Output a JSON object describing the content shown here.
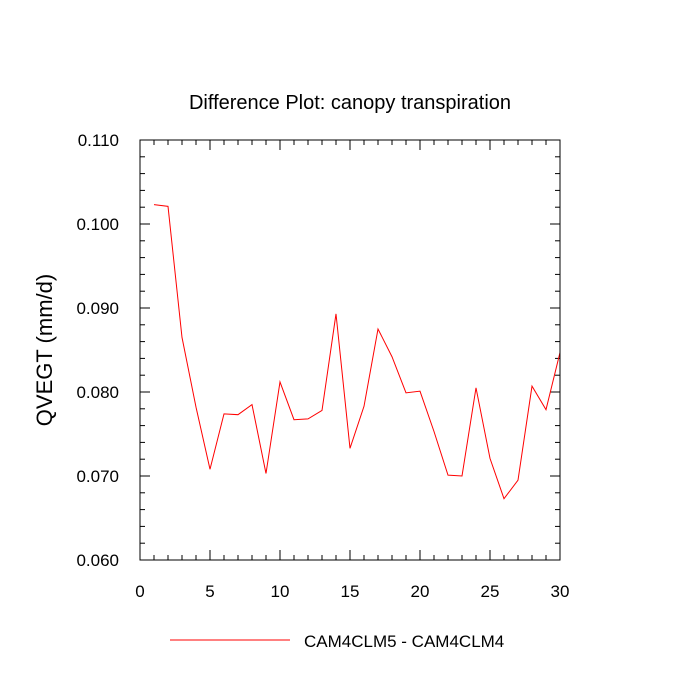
{
  "chart_data": {
    "type": "line",
    "title": "Difference Plot: canopy transpiration",
    "xlabel": "",
    "ylabel": "QVEGT  (mm/d)",
    "xlim": [
      0,
      30
    ],
    "ylim": [
      0.06,
      0.11
    ],
    "x_ticks": [
      0,
      5,
      10,
      15,
      20,
      25,
      30
    ],
    "x_tick_labels": [
      "0",
      "5",
      "10",
      "15",
      "20",
      "25",
      "30"
    ],
    "y_ticks": [
      0.06,
      0.07,
      0.08,
      0.09,
      0.1,
      0.11
    ],
    "y_tick_labels": [
      "0.060",
      "0.070",
      "0.080",
      "0.090",
      "0.100",
      "0.110"
    ],
    "x_minor_step": 1,
    "y_minor_step": 0.002,
    "grid": false,
    "legend_position": "bottom-center",
    "series": [
      {
        "name": "CAM4CLM5 - CAM4CLM4",
        "color": "#ff0000",
        "x": [
          1,
          2,
          3,
          4,
          5,
          6,
          7,
          8,
          9,
          10,
          11,
          12,
          13,
          14,
          15,
          16,
          17,
          18,
          19,
          20,
          21,
          22,
          23,
          24,
          25,
          26,
          27,
          28,
          29,
          30
        ],
        "y": [
          0.1023,
          0.1021,
          0.0865,
          0.0782,
          0.0708,
          0.0774,
          0.0773,
          0.0785,
          0.0703,
          0.0812,
          0.0767,
          0.0768,
          0.0778,
          0.0893,
          0.0733,
          0.0783,
          0.0875,
          0.0842,
          0.0799,
          0.0801,
          0.0753,
          0.0701,
          0.07,
          0.0805,
          0.0721,
          0.0673,
          0.0695,
          0.0807,
          0.0779,
          0.0847
        ]
      }
    ]
  }
}
